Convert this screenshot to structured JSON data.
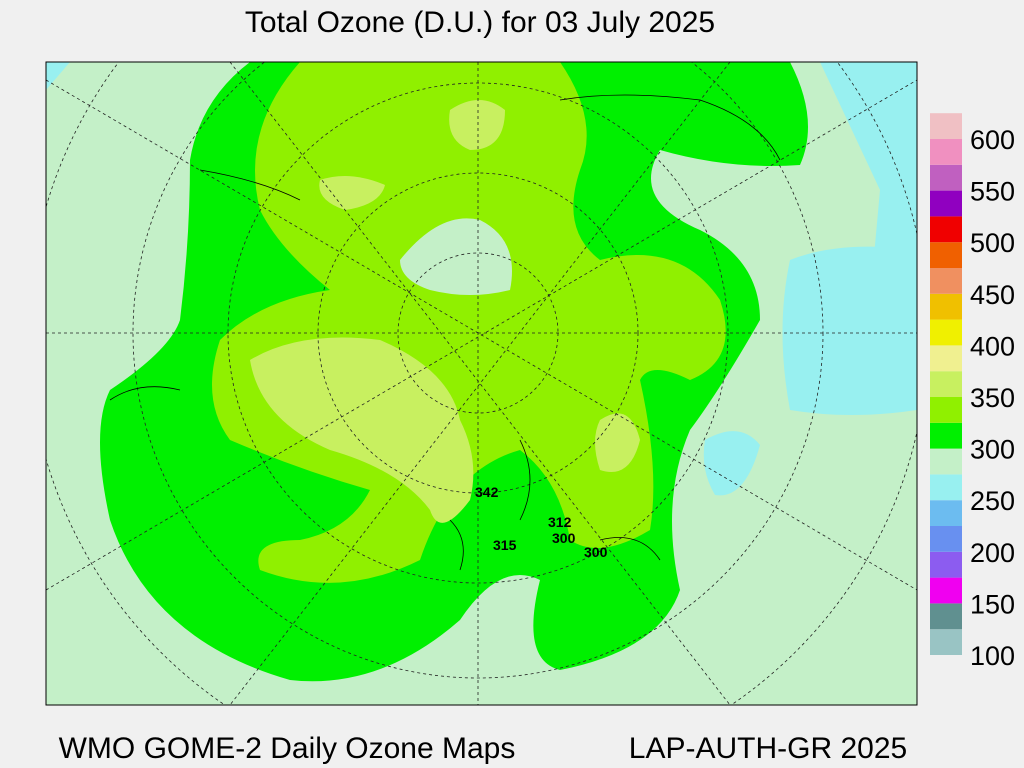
{
  "title": "Total Ozone (D.U.) for 03 July 2025",
  "footer_left": "WMO GOME-2 Daily Ozone Maps",
  "footer_right": "LAP-AUTH-GR 2025",
  "colorbar": {
    "ticks": [
      "100",
      "150",
      "200",
      "250",
      "300",
      "350",
      "400",
      "450",
      "500",
      "550",
      "600"
    ],
    "colors": [
      "#99c4c4",
      "#609090",
      "#f000f0",
      "#8c5cf0",
      "#6890f0",
      "#6cbcf0",
      "#98f0f0",
      "#c4f0c8",
      "#00f000",
      "#90f000",
      "#c8f060",
      "#f0f090",
      "#f0f000",
      "#f0c000",
      "#f09060",
      "#f06000",
      "#f00000",
      "#9000c0",
      "#c060c0",
      "#f090c0",
      "#f0c0c4"
    ]
  },
  "stations": [
    "342",
    "312",
    "300",
    "315",
    "300"
  ]
}
